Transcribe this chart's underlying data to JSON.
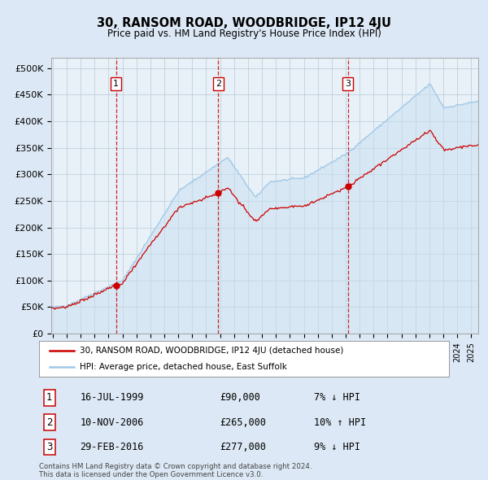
{
  "title": "30, RANSOM ROAD, WOODBRIDGE, IP12 4JU",
  "subtitle": "Price paid vs. HM Land Registry's House Price Index (HPI)",
  "ylabel_ticks": [
    "£0",
    "£50K",
    "£100K",
    "£150K",
    "£200K",
    "£250K",
    "£300K",
    "£350K",
    "£400K",
    "£450K",
    "£500K"
  ],
  "ytick_values": [
    0,
    50000,
    100000,
    150000,
    200000,
    250000,
    300000,
    350000,
    400000,
    450000,
    500000
  ],
  "ylim": [
    0,
    520000
  ],
  "hpi_color": "#a0c8e8",
  "hpi_fill_color": "#c8dff0",
  "price_color": "#cc0000",
  "bg_color": "#dce8f5",
  "plot_bg": "#e8f0f8",
  "grid_color": "#b8ccd8",
  "sale_years": [
    1999.54,
    2006.86,
    2016.16
  ],
  "sale_prices": [
    90000,
    265000,
    277000
  ],
  "sale_labels": [
    "1",
    "2",
    "3"
  ],
  "vline_color": "#cc0000",
  "annotation_rows": [
    {
      "label": "1",
      "date": "16-JUL-1999",
      "price": "£90,000",
      "pct": "7% ↓ HPI"
    },
    {
      "label": "2",
      "date": "10-NOV-2006",
      "price": "£265,000",
      "pct": "10% ↑ HPI"
    },
    {
      "label": "3",
      "date": "29-FEB-2016",
      "price": "£277,000",
      "pct": "9% ↓ HPI"
    }
  ],
  "legend_entries": [
    "30, RANSOM ROAD, WOODBRIDGE, IP12 4JU (detached house)",
    "HPI: Average price, detached house, East Suffolk"
  ],
  "footer": "Contains HM Land Registry data © Crown copyright and database right 2024.\nThis data is licensed under the Open Government Licence v3.0.",
  "xstart": 1994.9,
  "xend": 2025.5
}
